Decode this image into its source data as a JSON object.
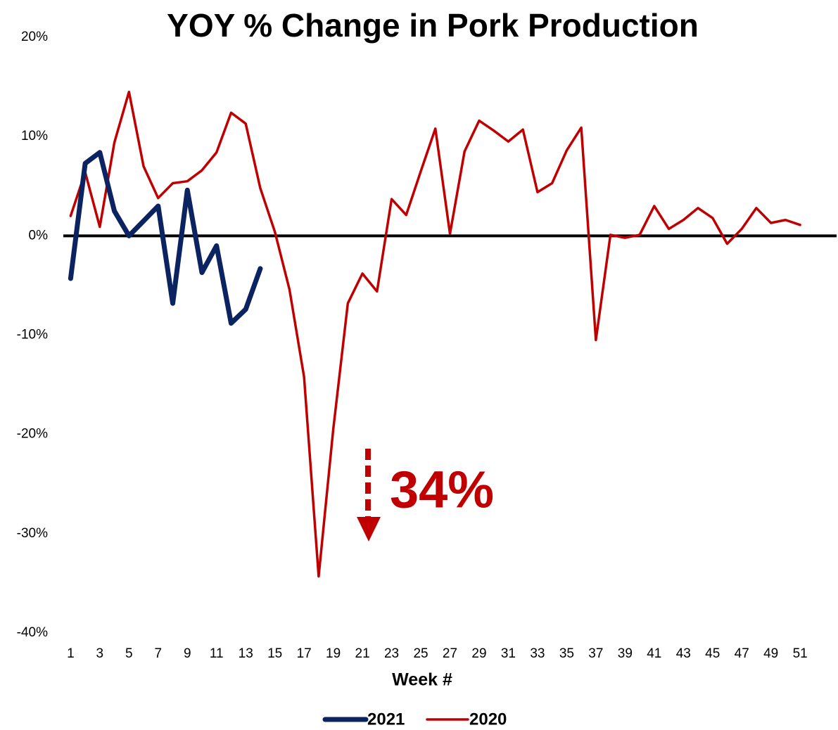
{
  "chart_data": {
    "type": "line",
    "title": "YOY % Change in Pork Production",
    "x_label": "Week #",
    "annotation": "34%",
    "x": [
      1,
      2,
      3,
      4,
      5,
      6,
      7,
      8,
      9,
      10,
      11,
      12,
      13,
      14,
      15,
      16,
      17,
      18,
      19,
      20,
      21,
      22,
      23,
      24,
      25,
      26,
      27,
      28,
      29,
      30,
      31,
      32,
      33,
      34,
      35,
      36,
      37,
      38,
      39,
      40,
      41,
      42,
      43,
      44,
      45,
      46,
      47,
      48,
      49,
      50,
      51
    ],
    "xlim": [
      0.5,
      53.5
    ],
    "xticks": [
      1,
      3,
      5,
      7,
      9,
      11,
      13,
      15,
      17,
      19,
      21,
      23,
      25,
      27,
      29,
      31,
      33,
      35,
      37,
      39,
      41,
      43,
      45,
      47,
      49,
      51
    ],
    "ylim": [
      -40,
      20
    ],
    "yticks": [
      {
        "value": 20,
        "label": "20%"
      },
      {
        "value": 10,
        "label": "10%"
      },
      {
        "value": 0,
        "label": "0%"
      },
      {
        "value": -10,
        "label": "-10%"
      },
      {
        "value": -20,
        "label": "-20%"
      },
      {
        "value": -30,
        "label": "-30%"
      },
      {
        "value": -40,
        "label": "-40%"
      }
    ],
    "grid": false,
    "legend": "bottom",
    "series": [
      {
        "name": "2021",
        "color": "#0b2361",
        "values": [
          -4.3,
          7.3,
          8.4,
          2.5,
          0.0,
          1.5,
          3.0,
          -6.8,
          4.6,
          -3.7,
          -1.0,
          -8.8,
          -7.4,
          -3.3,
          null,
          null,
          null,
          null,
          null,
          null,
          null,
          null,
          null,
          null,
          null,
          null,
          null,
          null,
          null,
          null,
          null,
          null,
          null,
          null,
          null,
          null,
          null,
          null,
          null,
          null,
          null,
          null,
          null,
          null,
          null,
          null,
          null,
          null,
          null,
          null,
          null
        ]
      },
      {
        "name": "2020",
        "color": "#c00000",
        "values": [
          2.0,
          6.4,
          0.9,
          9.4,
          14.5,
          7.0,
          3.8,
          5.3,
          5.5,
          6.6,
          8.4,
          12.4,
          11.3,
          4.8,
          0.4,
          -5.4,
          -14.2,
          -34.3,
          -19.5,
          -6.8,
          -3.8,
          -5.6,
          3.7,
          2.1,
          6.5,
          10.8,
          0.2,
          8.5,
          11.6,
          10.6,
          9.5,
          10.7,
          4.4,
          5.3,
          8.6,
          10.9,
          -10.5,
          0.1,
          -0.2,
          0.1,
          3.0,
          0.7,
          1.6,
          2.8,
          1.8,
          -0.8,
          0.7,
          2.8,
          1.3,
          1.6,
          1.1
        ]
      }
    ]
  }
}
